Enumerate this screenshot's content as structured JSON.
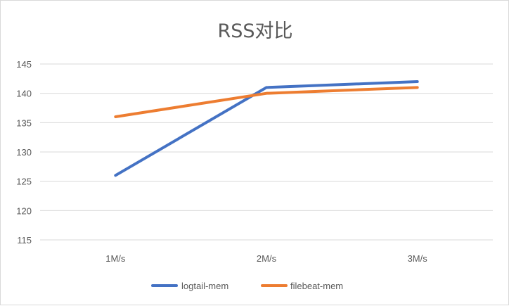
{
  "chart_data": {
    "type": "line",
    "title": "RSS对比",
    "xlabel": "",
    "ylabel": "",
    "categories": [
      "1M/s",
      "2M/s",
      "3M/s"
    ],
    "y_ticks": [
      "115",
      "120",
      "125",
      "130",
      "135",
      "140",
      "145"
    ],
    "ylim": [
      115,
      145
    ],
    "grid": true,
    "legend_position": "bottom",
    "series": [
      {
        "name": "logtail-mem",
        "values": [
          126,
          141,
          142
        ],
        "color": "#4472c4"
      },
      {
        "name": "filebeat-mem",
        "values": [
          136,
          140,
          141
        ],
        "color": "#ed7d31"
      }
    ]
  }
}
